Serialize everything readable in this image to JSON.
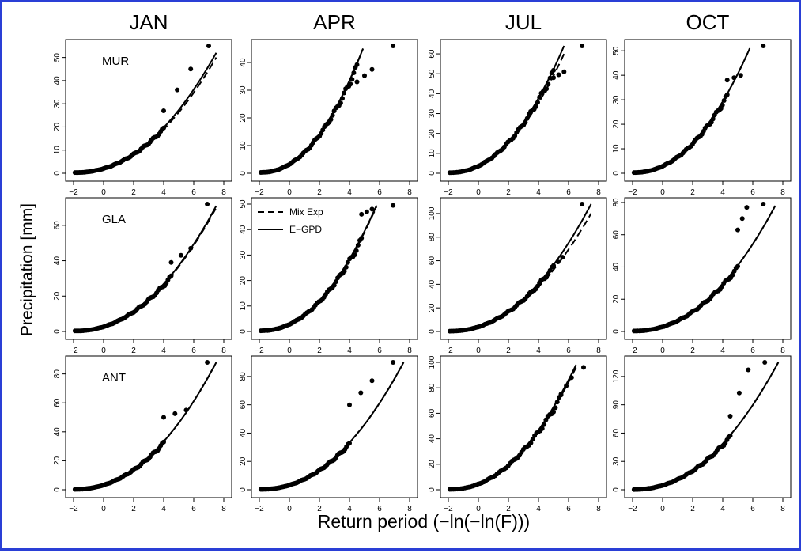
{
  "figure": {
    "ylabel": "Precipitation [mm]",
    "xlabel": "Return period (−ln(−ln(F)))",
    "months": [
      "JAN",
      "APR",
      "JUL",
      "OCT"
    ],
    "sites": [
      "MUR",
      "GLA",
      "ANT"
    ],
    "legend": {
      "panel": "GLA-APR",
      "placement": "top-left",
      "entries": [
        {
          "name": "Mix Exp",
          "style": "dashed"
        },
        {
          "name": "E−GPD",
          "style": "solid"
        }
      ]
    },
    "frame_color": "#2a3fd6"
  },
  "chart_data": [
    {
      "type": "scatter",
      "row": "MUR",
      "col": "JAN",
      "xlim": [
        -2,
        8
      ],
      "xticks": [
        -2,
        0,
        2,
        4,
        6,
        8
      ],
      "ylim": [
        0,
        55
      ],
      "yticks": [
        0,
        10,
        20,
        30,
        40,
        50
      ],
      "xmax": 7.0,
      "max_obs": 55,
      "solid_end": 52,
      "dashed_end": 50,
      "kink": [
        [
          4,
          27
        ],
        [
          5.8,
          45
        ]
      ]
    },
    {
      "type": "scatter",
      "row": "MUR",
      "col": "APR",
      "xlim": [
        -2,
        8
      ],
      "xticks": [
        -2,
        0,
        2,
        4,
        6,
        8
      ],
      "ylim": [
        0,
        46
      ],
      "yticks": [
        0,
        10,
        20,
        30,
        40
      ],
      "xmax": 6.9,
      "max_obs": 46,
      "solid_end": 45,
      "dashed_end": 45,
      "curve_xend": 4.9,
      "kink": [
        [
          4.5,
          33
        ],
        [
          5.5,
          37.5
        ]
      ]
    },
    {
      "type": "scatter",
      "row": "MUR",
      "col": "JUL",
      "xlim": [
        -2,
        8
      ],
      "xticks": [
        -2,
        0,
        2,
        4,
        6,
        8
      ],
      "ylim": [
        0,
        64
      ],
      "yticks": [
        0,
        10,
        20,
        30,
        40,
        50,
        60
      ],
      "xmax": 6.9,
      "max_obs": 64,
      "solid_end": 64,
      "dashed_end": 60,
      "curve_xend": 5.7,
      "kink": [
        [
          5.0,
          48
        ],
        [
          5.7,
          51
        ]
      ]
    },
    {
      "type": "scatter",
      "row": "MUR",
      "col": "OCT",
      "xlim": [
        -2,
        8
      ],
      "xticks": [
        -2,
        0,
        2,
        4,
        6,
        8
      ],
      "ylim": [
        0,
        52
      ],
      "yticks": [
        0,
        10,
        20,
        30,
        40,
        50
      ],
      "xmax": 6.7,
      "max_obs": 52,
      "solid_end": 51,
      "dashed_end": 51,
      "curve_xend": 5.8,
      "kink": [
        [
          4.3,
          38
        ],
        [
          5.2,
          40
        ]
      ]
    },
    {
      "type": "scatter",
      "row": "GLA",
      "col": "JAN",
      "xlim": [
        -2,
        8
      ],
      "xticks": [
        -2,
        0,
        2,
        4,
        6,
        8
      ],
      "ylim": [
        0,
        72
      ],
      "yticks": [
        0,
        20,
        40,
        60
      ],
      "xmax": 6.9,
      "max_obs": 72,
      "solid_end": 71,
      "dashed_end": 70,
      "kink": [
        [
          4.5,
          39
        ],
        [
          5.8,
          47
        ]
      ]
    },
    {
      "type": "scatter",
      "row": "GLA",
      "col": "APR",
      "xlim": [
        -2,
        8
      ],
      "xticks": [
        -2,
        0,
        2,
        4,
        6,
        8
      ],
      "ylim": [
        0,
        50
      ],
      "yticks": [
        0,
        10,
        20,
        30,
        40,
        50
      ],
      "xmax": 6.9,
      "max_obs": 49.5,
      "solid_end": 49.5,
      "dashed_end": 49,
      "curve_xend": 5.8,
      "kink": [
        [
          4.8,
          46
        ],
        [
          5.5,
          48
        ]
      ]
    },
    {
      "type": "scatter",
      "row": "GLA",
      "col": "JUL",
      "xlim": [
        -2,
        8
      ],
      "xticks": [
        -2,
        0,
        2,
        4,
        6,
        8
      ],
      "ylim": [
        0,
        108
      ],
      "yticks": [
        0,
        20,
        40,
        60,
        80,
        100
      ],
      "xmax": 6.9,
      "max_obs": 108,
      "solid_end": 108,
      "dashed_end": 100,
      "kink": [
        [
          5.0,
          55
        ],
        [
          5.6,
          63
        ]
      ]
    },
    {
      "type": "scatter",
      "row": "GLA",
      "col": "OCT",
      "xlim": [
        -2,
        8
      ],
      "xticks": [
        -2,
        0,
        2,
        4,
        6,
        8
      ],
      "ylim": [
        0,
        79
      ],
      "yticks": [
        0,
        20,
        40,
        60,
        80
      ],
      "xmax": 6.7,
      "max_obs": 79,
      "solid_end": 78,
      "dashed_end": 78,
      "kink": [
        [
          5.0,
          63
        ],
        [
          5.6,
          77
        ]
      ]
    },
    {
      "type": "scatter",
      "row": "ANT",
      "col": "JAN",
      "xlim": [
        -2,
        8
      ],
      "xticks": [
        -2,
        0,
        2,
        4,
        6,
        8
      ],
      "ylim": [
        0,
        88
      ],
      "yticks": [
        0,
        20,
        40,
        60,
        80
      ],
      "xmax": 6.9,
      "max_obs": 88,
      "solid_end": 88,
      "dashed_end": 88,
      "kink": [
        [
          4.0,
          50
        ],
        [
          5.5,
          55
        ]
      ]
    },
    {
      "type": "scatter",
      "row": "ANT",
      "col": "APR",
      "xlim": [
        -2,
        8
      ],
      "xticks": [
        -2,
        0,
        2,
        4,
        6,
        8
      ],
      "ylim": [
        0,
        90
      ],
      "yticks": [
        0,
        20,
        40,
        60,
        80
      ],
      "xmax": 6.9,
      "max_obs": 90,
      "solid_end": 90,
      "dashed_end": 90,
      "curve_xend": 7.6,
      "kink": [
        [
          4.0,
          60
        ],
        [
          5.5,
          77
        ]
      ]
    },
    {
      "type": "scatter",
      "row": "ANT",
      "col": "JUL",
      "xlim": [
        -2,
        8
      ],
      "xticks": [
        -2,
        0,
        2,
        4,
        6,
        8
      ],
      "ylim": [
        0,
        100
      ],
      "yticks": [
        0,
        20,
        40,
        60,
        80,
        100
      ],
      "xmax": 7.0,
      "max_obs": 96,
      "solid_end": 98,
      "dashed_end": 96,
      "curve_xend": 6.5,
      "kink": [
        [
          5.5,
          75
        ],
        [
          6.2,
          88
        ]
      ]
    },
    {
      "type": "scatter",
      "row": "ANT",
      "col": "OCT",
      "xlim": [
        -2,
        8
      ],
      "xticks": [
        -2,
        0,
        2,
        4,
        6,
        8
      ],
      "ylim": [
        0,
        135
      ],
      "yticks": [
        0,
        30,
        60,
        90,
        120
      ],
      "xmax": 6.8,
      "max_obs": 135,
      "solid_end": 135,
      "dashed_end": 135,
      "curve_xend": 7.7,
      "kink": [
        [
          4.5,
          78
        ],
        [
          5.7,
          127
        ]
      ]
    }
  ]
}
